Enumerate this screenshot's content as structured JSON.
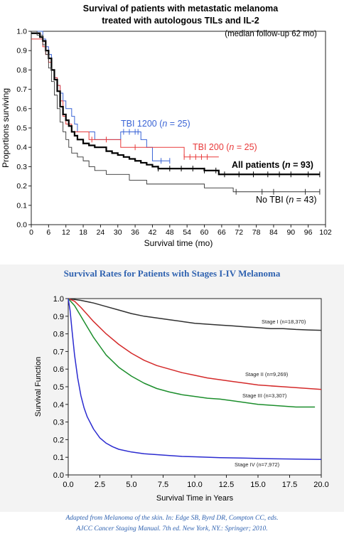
{
  "chart_data": [
    {
      "type": "line",
      "title": "Survival of patients with metastatic melanoma",
      "subtitle": "treated with autologous TILs and IL-2",
      "note": "(median follow-up 62 mo)",
      "xlabel": "Survival time (mo)",
      "ylabel": "Proportions surviving",
      "xlim": [
        0,
        102
      ],
      "ylim": [
        0,
        1.0
      ],
      "xticks": [
        "0",
        "6",
        "12",
        "18",
        "24",
        "30",
        "36",
        "42",
        "48",
        "54",
        "60",
        "66",
        "72",
        "78",
        "84",
        "90",
        "96",
        "102"
      ],
      "yticks": [
        "0.0",
        "0.1",
        "0.2",
        "0.3",
        "0.4",
        "0.5",
        "0.6",
        "0.7",
        "0.8",
        "0.9",
        "1.0"
      ],
      "series": [
        {
          "label_prefix": "TBI 1200 (",
          "label_n": "n",
          "label_suffix": " = 25)",
          "color": "#3a64d6",
          "stroke_width": 1.0,
          "x": [
            0,
            3,
            4,
            5,
            6,
            7,
            8,
            9,
            10,
            11,
            12,
            13,
            14,
            15,
            16,
            18,
            20,
            22,
            24,
            26,
            27,
            29,
            31,
            34,
            36,
            37,
            38,
            40,
            42,
            48
          ],
          "y": [
            1.0,
            1.0,
            0.96,
            0.92,
            0.88,
            0.8,
            0.76,
            0.72,
            0.68,
            0.64,
            0.6,
            0.6,
            0.56,
            0.52,
            0.48,
            0.48,
            0.48,
            0.44,
            0.44,
            0.44,
            0.44,
            0.44,
            0.48,
            0.48,
            0.48,
            0.48,
            0.44,
            0.4,
            0.33,
            0.33
          ],
          "censor_x": [
            32,
            34,
            36,
            37,
            45,
            48
          ],
          "censor_y": [
            0.48,
            0.48,
            0.48,
            0.48,
            0.33,
            0.33
          ]
        },
        {
          "label_prefix": "TBI 200 (",
          "label_n": "n",
          "label_suffix": " = 25)",
          "color": "#e83a3a",
          "stroke_width": 1.0,
          "x": [
            0,
            2,
            4,
            5,
            6,
            7,
            8,
            9,
            10,
            11,
            12,
            14,
            16,
            18,
            20,
            22,
            26,
            28,
            30,
            31,
            32,
            34,
            36,
            48,
            50,
            52,
            53,
            54,
            56,
            60,
            62,
            65
          ],
          "y": [
            0.96,
            0.96,
            0.92,
            0.88,
            0.84,
            0.8,
            0.76,
            0.72,
            0.64,
            0.56,
            0.52,
            0.48,
            0.48,
            0.48,
            0.44,
            0.44,
            0.44,
            0.44,
            0.44,
            0.4,
            0.4,
            0.4,
            0.4,
            0.4,
            0.4,
            0.4,
            0.35,
            0.35,
            0.35,
            0.35,
            0.35,
            0.35
          ],
          "censor_x": [
            21,
            26,
            36,
            53,
            55,
            57,
            59,
            61
          ],
          "censor_y": [
            0.44,
            0.44,
            0.4,
            0.35,
            0.35,
            0.35,
            0.35,
            0.35
          ]
        },
        {
          "label_prefix": "All patients (",
          "label_n": "n",
          "label_suffix": "  = 93)",
          "color": "#000000",
          "stroke_width": 2.2,
          "label_bold": true,
          "x": [
            0,
            3,
            4,
            5,
            6,
            7,
            8,
            9,
            10,
            11,
            12,
            13,
            14,
            15,
            16,
            18,
            20,
            22,
            24,
            26,
            28,
            30,
            32,
            34,
            36,
            38,
            40,
            42,
            44,
            46,
            48,
            52,
            56,
            60,
            64,
            65,
            66,
            70,
            80,
            90,
            100
          ],
          "y": [
            0.99,
            0.97,
            0.95,
            0.9,
            0.86,
            0.8,
            0.75,
            0.69,
            0.61,
            0.57,
            0.54,
            0.51,
            0.48,
            0.46,
            0.44,
            0.42,
            0.41,
            0.4,
            0.4,
            0.38,
            0.37,
            0.36,
            0.35,
            0.34,
            0.33,
            0.32,
            0.31,
            0.3,
            0.29,
            0.29,
            0.29,
            0.29,
            0.29,
            0.28,
            0.28,
            0.26,
            0.26,
            0.26,
            0.26,
            0.26,
            0.26
          ],
          "censor_x": [
            44,
            48,
            52,
            56,
            60,
            64,
            67,
            72,
            77,
            82,
            86,
            90,
            96,
            100
          ],
          "censor_y": [
            0.29,
            0.29,
            0.29,
            0.29,
            0.28,
            0.28,
            0.26,
            0.26,
            0.26,
            0.26,
            0.26,
            0.26,
            0.26,
            0.26
          ]
        },
        {
          "label_prefix": "No TBI (",
          "label_n": "n",
          "label_suffix": " = 43)",
          "color": "#333333",
          "stroke_width": 0.9,
          "x": [
            0,
            2,
            4,
            5,
            6,
            7,
            8,
            9,
            10,
            11,
            12,
            13,
            14,
            16,
            18,
            20,
            22,
            24,
            26,
            28,
            30,
            34,
            36,
            40,
            42,
            48,
            54,
            60,
            66,
            70,
            80,
            90,
            100
          ],
          "y": [
            1.0,
            0.98,
            0.93,
            0.88,
            0.81,
            0.74,
            0.67,
            0.6,
            0.53,
            0.48,
            0.44,
            0.4,
            0.37,
            0.35,
            0.33,
            0.3,
            0.28,
            0.28,
            0.26,
            0.26,
            0.26,
            0.23,
            0.23,
            0.21,
            0.21,
            0.21,
            0.21,
            0.19,
            0.19,
            0.17,
            0.17,
            0.17,
            0.17
          ],
          "censor_x": [
            71,
            80,
            84,
            95,
            100
          ],
          "censor_y": [
            0.17,
            0.17,
            0.17,
            0.17,
            0.17
          ]
        }
      ]
    },
    {
      "type": "line",
      "title": "Survival Rates for Patients with Stages I-IV Melanoma",
      "xlabel": "Survival Time in Years",
      "ylabel": "Survival Function",
      "xlim": [
        0,
        20
      ],
      "ylim": [
        0,
        1.0
      ],
      "xticks": [
        "0.0",
        "2.5",
        "5.0",
        "7.5",
        "10.0",
        "12.5",
        "15.0",
        "17.5",
        "20.0"
      ],
      "yticks": [
        "0.0",
        "0.1",
        "0.2",
        "0.3",
        "0.4",
        "0.5",
        "0.6",
        "0.7",
        "0.8",
        "0.9",
        "1.0"
      ],
      "series": [
        {
          "label": "Stage I (n=18,370)",
          "color": "#303030",
          "x": [
            0,
            1,
            2,
            3,
            4,
            5,
            6,
            7,
            8,
            9,
            10,
            11,
            12,
            13,
            14,
            15,
            16,
            17,
            18,
            19,
            20
          ],
          "y": [
            1.0,
            0.99,
            0.975,
            0.955,
            0.935,
            0.915,
            0.9,
            0.89,
            0.88,
            0.87,
            0.86,
            0.855,
            0.85,
            0.845,
            0.84,
            0.835,
            0.83,
            0.83,
            0.825,
            0.822,
            0.82
          ]
        },
        {
          "label": "Stage II (n=9,269)",
          "color": "#d42a2a",
          "x": [
            0,
            0.5,
            1,
            1.5,
            2,
            3,
            4,
            5,
            6,
            7,
            8,
            9,
            10,
            11,
            12,
            13,
            14,
            15,
            16,
            17,
            18,
            19,
            20
          ],
          "y": [
            1.0,
            0.985,
            0.95,
            0.91,
            0.87,
            0.8,
            0.74,
            0.69,
            0.65,
            0.62,
            0.6,
            0.58,
            0.565,
            0.55,
            0.54,
            0.53,
            0.52,
            0.51,
            0.505,
            0.5,
            0.495,
            0.49,
            0.485
          ]
        },
        {
          "label": "Stage III (n=3,307)",
          "color": "#1c8e2c",
          "x": [
            0,
            0.5,
            1,
            1.5,
            2,
            2.5,
            3,
            4,
            5,
            6,
            7,
            8,
            9,
            10,
            11,
            12,
            13,
            14,
            15,
            16,
            17,
            18,
            19.5
          ],
          "y": [
            1.0,
            0.96,
            0.9,
            0.84,
            0.78,
            0.73,
            0.68,
            0.61,
            0.56,
            0.52,
            0.49,
            0.47,
            0.455,
            0.445,
            0.435,
            0.43,
            0.42,
            0.41,
            0.4,
            0.395,
            0.39,
            0.385,
            0.385
          ]
        },
        {
          "label": "Stage IV (n=7,972)",
          "color": "#2b2bd0",
          "x": [
            0,
            0.15,
            0.3,
            0.5,
            0.75,
            1,
            1.25,
            1.5,
            2,
            2.5,
            3,
            3.5,
            4,
            5,
            6,
            7,
            8,
            9,
            10,
            12,
            14,
            16,
            18,
            20
          ],
          "y": [
            1.0,
            0.93,
            0.82,
            0.68,
            0.55,
            0.45,
            0.38,
            0.33,
            0.26,
            0.21,
            0.18,
            0.16,
            0.145,
            0.13,
            0.12,
            0.115,
            0.11,
            0.105,
            0.103,
            0.098,
            0.095,
            0.092,
            0.09,
            0.088
          ]
        }
      ]
    }
  ],
  "citation": {
    "line1": "Adapted from Melanoma of the skin. In: Edge SB, Byrd DR, Compton CC, eds.",
    "line2": "AJCC Cancer Staging Manual. 7th ed. New York, NY.: Springer; 2010."
  }
}
